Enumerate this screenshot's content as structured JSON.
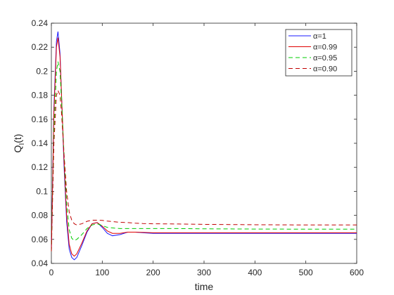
{
  "chart_data": {
    "type": "line",
    "xlabel": "time",
    "ylabel": {
      "base": "Q",
      "sub": "I",
      "tail": "(t)"
    },
    "x": [
      0,
      5,
      10,
      13,
      17,
      20,
      25,
      30,
      35,
      40,
      45,
      50,
      60,
      70,
      80,
      90,
      100,
      110,
      120,
      135,
      150,
      165,
      180,
      200,
      250,
      300,
      400,
      500,
      600
    ],
    "series": [
      {
        "name": "α=1",
        "color": "#1a1aff",
        "dash": "solid",
        "values": [
          0.05,
          0.17,
          0.225,
          0.233,
          0.215,
          0.18,
          0.12,
          0.075,
          0.052,
          0.045,
          0.043,
          0.045,
          0.055,
          0.066,
          0.073,
          0.074,
          0.07,
          0.065,
          0.063,
          0.064,
          0.066,
          0.066,
          0.0655,
          0.065,
          0.065,
          0.065,
          0.065,
          0.065,
          0.065
        ]
      },
      {
        "name": "α=0.99",
        "color": "#e00000",
        "dash": "solid",
        "values": [
          0.05,
          0.165,
          0.22,
          0.228,
          0.212,
          0.18,
          0.125,
          0.08,
          0.056,
          0.048,
          0.046,
          0.048,
          0.057,
          0.067,
          0.073,
          0.074,
          0.071,
          0.067,
          0.065,
          0.065,
          0.066,
          0.066,
          0.0658,
          0.0655,
          0.0655,
          0.0655,
          0.0655,
          0.0655,
          0.0655
        ]
      },
      {
        "name": "α=0.95",
        "color": "#00cc00",
        "dash": "dashed",
        "values": [
          0.05,
          0.15,
          0.2,
          0.208,
          0.2,
          0.175,
          0.13,
          0.09,
          0.068,
          0.061,
          0.059,
          0.06,
          0.064,
          0.069,
          0.072,
          0.073,
          0.0715,
          0.07,
          0.0695,
          0.069,
          0.069,
          0.069,
          0.069,
          0.069,
          0.069,
          0.0688,
          0.0686,
          0.0685,
          0.0685
        ]
      },
      {
        "name": "α=0.90",
        "color": "#c00000",
        "dash": "dashed",
        "values": [
          0.05,
          0.14,
          0.18,
          0.184,
          0.18,
          0.165,
          0.13,
          0.1,
          0.083,
          0.076,
          0.073,
          0.072,
          0.073,
          0.075,
          0.076,
          0.076,
          0.0758,
          0.0752,
          0.0748,
          0.0742,
          0.074,
          0.0735,
          0.0732,
          0.073,
          0.0728,
          0.0725,
          0.0722,
          0.072,
          0.072
        ]
      }
    ],
    "xlim": [
      0,
      600
    ],
    "xticks": [
      0,
      100,
      200,
      300,
      400,
      500,
      600
    ],
    "ylim": [
      0.04,
      0.24
    ],
    "yticks": [
      0.04,
      0.06,
      0.08,
      0.1,
      0.12,
      0.14,
      0.16,
      0.18,
      0.2,
      0.22,
      0.24
    ],
    "grid": false,
    "legend": "top-right"
  }
}
